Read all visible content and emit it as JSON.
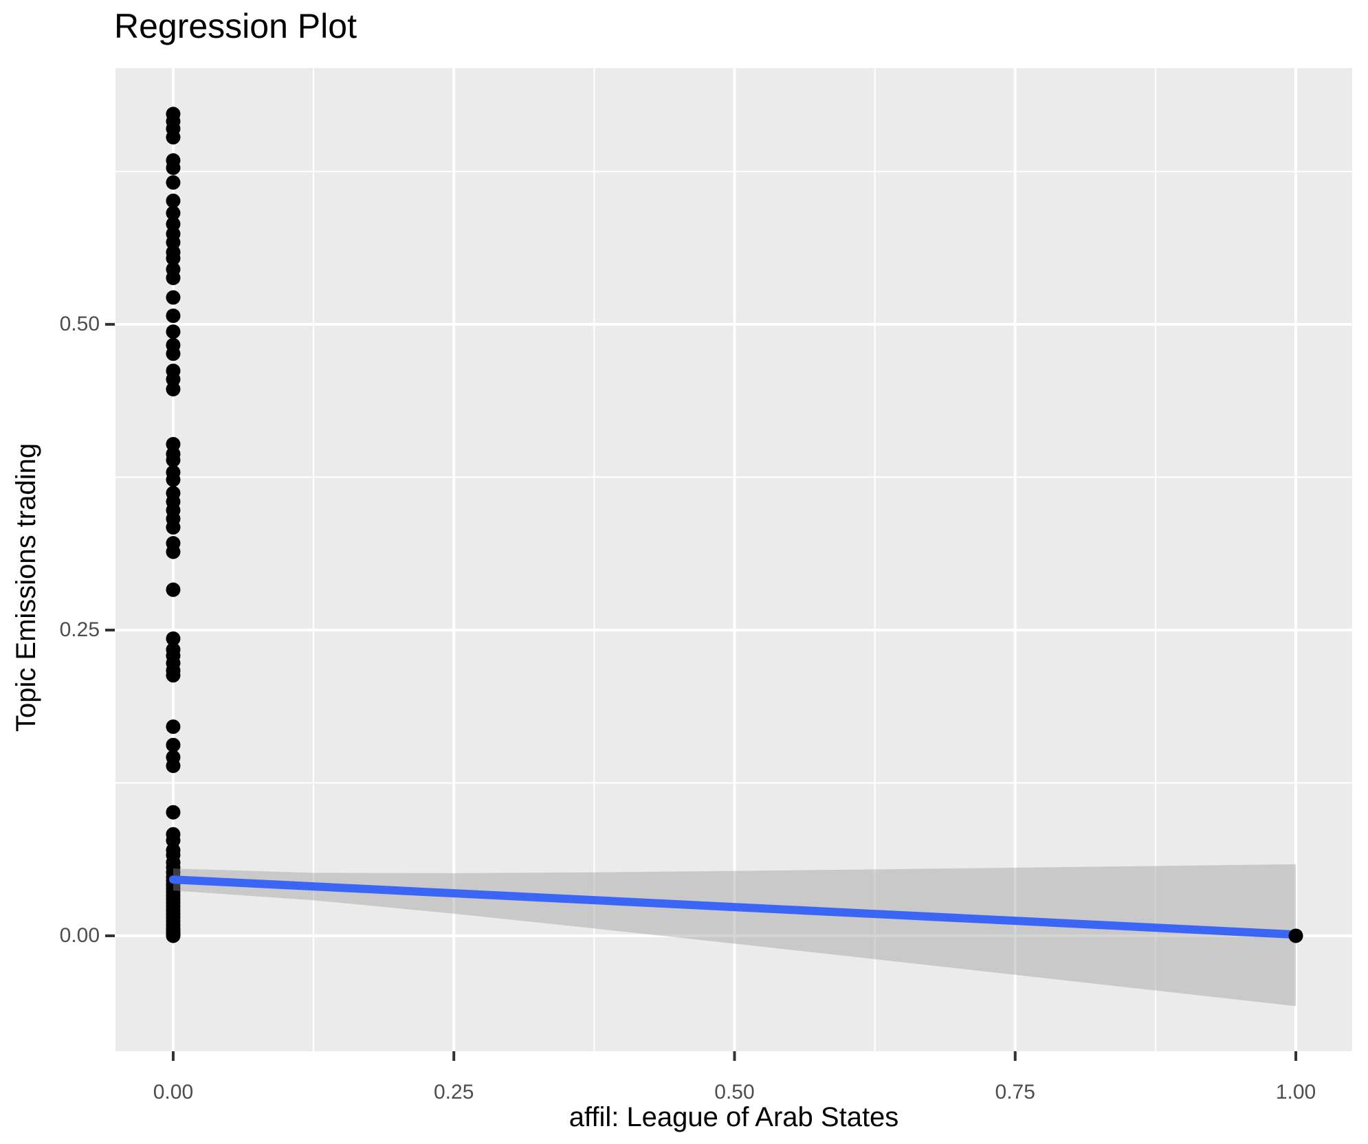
{
  "chart_data": {
    "type": "scatter",
    "title": "Regression Plot",
    "xlabel": "affil: League of Arab States",
    "ylabel": "Topic Emissions trading",
    "xlim": [
      -0.0514,
      1.0502
    ],
    "ylim": [
      -0.0944,
      0.7096
    ],
    "grid": true,
    "legend": "none",
    "panel_background": "#EBEBEB",
    "grid_color": "#FFFFFF",
    "tick_color": "#333333",
    "tick_label_color": "#4D4D4D",
    "point_color": "#000000",
    "x_axis": {
      "major_ticks": [
        0,
        0.25,
        0.5,
        0.75,
        1.0
      ],
      "tick_labels": [
        "0.00",
        "0.25",
        "0.50",
        "0.75",
        "1.00"
      ],
      "minor_ticks": [
        0.125,
        0.375,
        0.625,
        0.875
      ]
    },
    "y_axis": {
      "major_ticks": [
        0,
        0.25,
        0.5
      ],
      "tick_labels": [
        "0.00",
        "0.25",
        "0.50"
      ],
      "minor_ticks": [
        0.125,
        0.375,
        0.625
      ]
    },
    "points": [
      {
        "x": 0,
        "y_values": [
          0.672,
          0.666,
          0.66,
          0.653,
          0.634,
          0.628,
          0.616,
          0.601,
          0.591,
          0.582,
          0.574,
          0.567,
          0.559,
          0.554,
          0.545,
          0.538,
          0.522,
          0.507,
          0.494,
          0.483,
          0.476,
          0.462,
          0.455,
          0.447,
          0.402,
          0.394,
          0.389,
          0.379,
          0.373,
          0.362,
          0.355,
          0.348,
          0.341,
          0.334,
          0.321,
          0.314,
          0.283,
          0.243,
          0.234,
          0.229,
          0.223,
          0.217,
          0.213,
          0.171,
          0.156,
          0.146,
          0.139,
          0.101,
          0.083,
          0.078,
          0.07,
          0.066,
          0.06,
          0.056,
          0.052,
          0.048,
          0.045,
          0.042,
          0.039,
          0.036,
          0.033,
          0.03,
          0.027,
          0.024,
          0.021,
          0.018,
          0.015,
          0.012,
          0.009,
          0.006,
          0.004,
          0.002,
          0.001,
          0.0
        ]
      },
      {
        "x": 1,
        "y_values": [
          0.0
        ]
      }
    ],
    "regression_line": {
      "color": "#3B66F5",
      "x": [
        0,
        1
      ],
      "y": [
        0.046,
        0.001
      ]
    },
    "confidence_band": {
      "color": "#969696",
      "opacity": 0.4,
      "stops": [
        {
          "x": 0.0,
          "upper": 0.055,
          "lower": 0.037
        },
        {
          "x": 0.125,
          "upper": 0.0515,
          "lower": 0.0291
        },
        {
          "x": 0.25,
          "upper": 0.0512,
          "lower": 0.0181
        },
        {
          "x": 0.375,
          "upper": 0.0519,
          "lower": 0.006
        },
        {
          "x": 0.5,
          "upper": 0.053,
          "lower": -0.0064
        },
        {
          "x": 0.625,
          "upper": 0.0543,
          "lower": -0.0191
        },
        {
          "x": 0.75,
          "upper": 0.0557,
          "lower": -0.0319
        },
        {
          "x": 0.875,
          "upper": 0.0571,
          "lower": -0.0447
        },
        {
          "x": 1.0,
          "upper": 0.0585,
          "lower": -0.0575
        }
      ]
    }
  }
}
